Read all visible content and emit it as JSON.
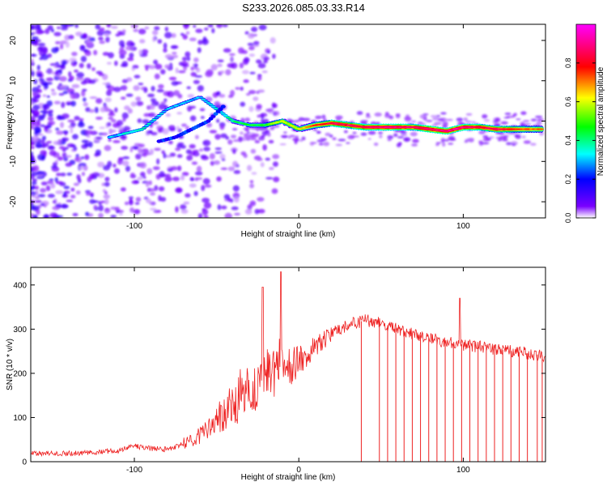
{
  "chart_data": [
    {
      "type": "heatmap",
      "title": "S233.2026.085.03.33.R14",
      "xlabel": "Height of straight line (km)",
      "ylabel": "Frequency (Hz)",
      "xlim": [
        -163,
        150
      ],
      "ylim": [
        -24,
        24
      ],
      "xticks": [
        -100,
        0,
        100
      ],
      "yticks": [
        -20,
        -10,
        0,
        10,
        20
      ],
      "grid": false,
      "colorbar": {
        "label": "Normalized spectral amplitude",
        "range": [
          0.0,
          1.0
        ],
        "ticks": [
          "0.0",
          "0.2",
          "0.4",
          "0.6",
          "0.8"
        ],
        "colors": [
          "#ffffff",
          "#7a00ff",
          "#0000ff",
          "#00ffff",
          "#00ff00",
          "#ffff00",
          "#ff0000",
          "#ff00ff"
        ]
      },
      "ridge_heights_km": [
        -115,
        -105,
        -95,
        -80,
        -70,
        -60,
        -50,
        -40,
        -30,
        -20,
        -10,
        0,
        10,
        20,
        30,
        40,
        50,
        60,
        70,
        80,
        90,
        100,
        110,
        120,
        130,
        140,
        148
      ],
      "ridge_freq_hz": [
        -4,
        -3,
        -2,
        3,
        4.5,
        6,
        3,
        0,
        -1,
        -1,
        0,
        -2,
        -1,
        -0.5,
        -1,
        -1.5,
        -1.5,
        -1.5,
        -1.5,
        -2,
        -2.5,
        -1.5,
        -1.5,
        -2,
        -2,
        -2,
        -2
      ],
      "ridge_amplitude": [
        0.3,
        0.35,
        0.35,
        0.3,
        0.3,
        0.3,
        0.35,
        0.4,
        0.45,
        0.5,
        0.6,
        0.6,
        0.75,
        0.85,
        0.85,
        0.85,
        0.9,
        0.9,
        0.85,
        0.9,
        0.9,
        0.9,
        0.85,
        0.85,
        0.8,
        0.75,
        0.7
      ],
      "lower_branch_heights_km": [
        -85,
        -75,
        -65,
        -55,
        -45
      ],
      "lower_branch_freq_hz": [
        -5,
        -4,
        -2,
        0,
        4
      ]
    },
    {
      "type": "line",
      "title": "",
      "xlabel": "Height of straight line (km)",
      "ylabel": "SNR (10 * v/v)",
      "xlim": [
        -163,
        150
      ],
      "ylim": [
        0,
        440
      ],
      "xticks": [
        -100,
        0,
        100
      ],
      "yticks": [
        0,
        100,
        200,
        300,
        400
      ],
      "grid": false,
      "series": [
        {
          "name": "SNR",
          "color": "#ee2222",
          "envelope_heights_km": [
            -163,
            -130,
            -110,
            -100,
            -90,
            -80,
            -70,
            -60,
            -50,
            -40,
            -30,
            -20,
            -10,
            0,
            10,
            20,
            30,
            40,
            50,
            60,
            70,
            80,
            90,
            100,
            110,
            120,
            130,
            140,
            150
          ],
          "envelope_snr": [
            18,
            20,
            25,
            35,
            30,
            28,
            40,
            60,
            90,
            130,
            160,
            200,
            200,
            230,
            260,
            290,
            310,
            320,
            315,
            300,
            290,
            280,
            270,
            265,
            260,
            255,
            250,
            245,
            240
          ],
          "spike_heights_km": [
            -22,
            -11,
            98
          ],
          "spike_snr": [
            395,
            430,
            370
          ],
          "dropout_heights_km": [
            38,
            49,
            54,
            59,
            64,
            69,
            74,
            79,
            84,
            89,
            94,
            99,
            104,
            109,
            114,
            119,
            124,
            129,
            134,
            139,
            145,
            148
          ]
        }
      ]
    }
  ]
}
